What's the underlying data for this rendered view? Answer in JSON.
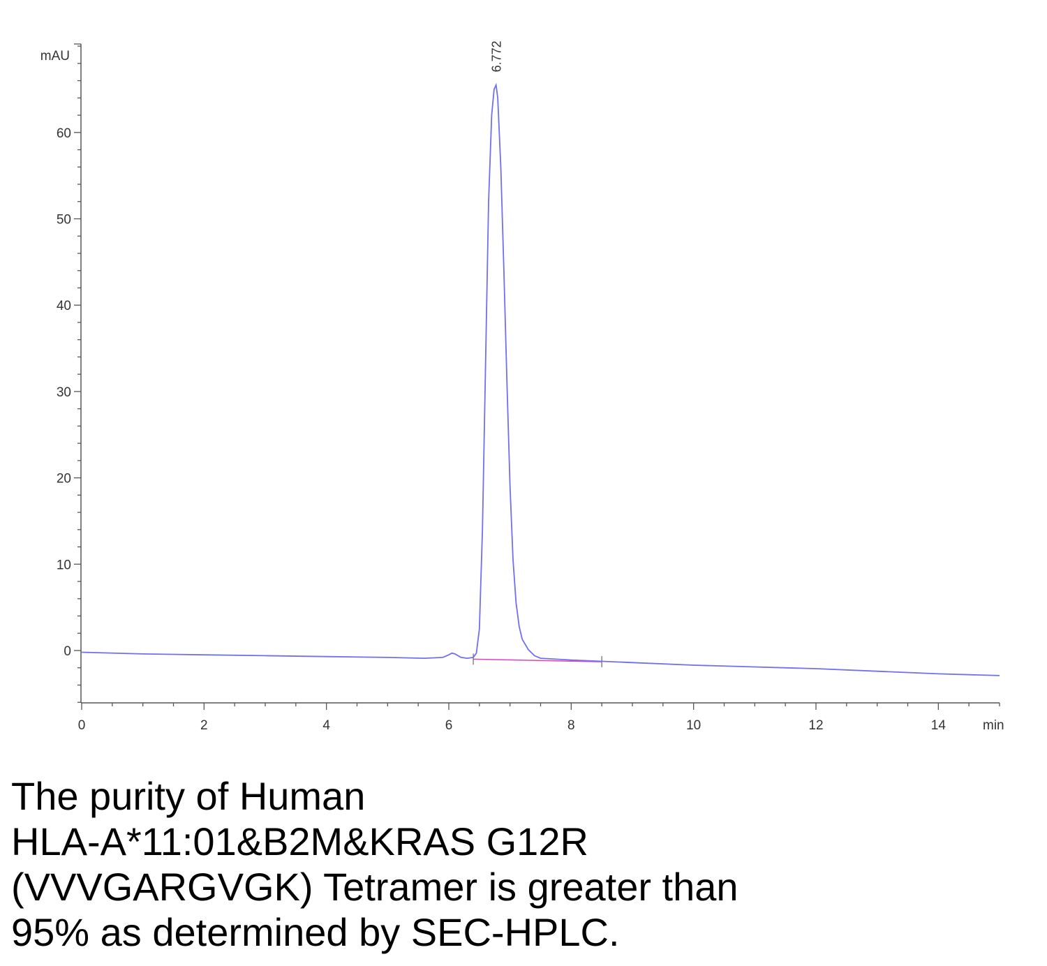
{
  "chart_data": {
    "type": "line",
    "title": "",
    "xlabel": "min",
    "ylabel": "mAU",
    "xlim": [
      0,
      15
    ],
    "ylim": [
      -6,
      70
    ],
    "x_major_ticks": [
      0,
      2,
      4,
      6,
      8,
      10,
      12,
      14
    ],
    "x_tick_labels": [
      "0",
      "2",
      "4",
      "6",
      "8",
      "10",
      "12",
      "14"
    ],
    "x_minor_step": 0.5,
    "y_major_ticks": [
      0,
      10,
      20,
      30,
      40,
      50,
      60
    ],
    "y_tick_labels": [
      "0",
      "10",
      "20",
      "30",
      "40",
      "50",
      "60"
    ],
    "y_minor_step": 2,
    "grid": false,
    "legend": "none",
    "peak_label": {
      "x": 6.772,
      "y": 66.5,
      "text": "6.772"
    },
    "series": [
      {
        "color": "#6f6ff0",
        "x": [
          0,
          1,
          2,
          3,
          4,
          5,
          5.6,
          5.9,
          6.0,
          6.05,
          6.1,
          6.2,
          6.3,
          6.4,
          6.45,
          6.5,
          6.55,
          6.6,
          6.65,
          6.7,
          6.74,
          6.772,
          6.8,
          6.85,
          6.9,
          6.95,
          7.0,
          7.05,
          7.1,
          7.15,
          7.2,
          7.3,
          7.4,
          7.5,
          8,
          9,
          10,
          11,
          12,
          13,
          14,
          15
        ],
        "y": [
          -0.2,
          -0.4,
          -0.5,
          -0.6,
          -0.7,
          -0.8,
          -0.9,
          -0.8,
          -0.5,
          -0.3,
          -0.4,
          -0.8,
          -0.9,
          -0.8,
          -0.3,
          2.5,
          14,
          33,
          52,
          62,
          65,
          65.5,
          64,
          56,
          44,
          31,
          19,
          10.5,
          5.5,
          2.8,
          1.3,
          0.1,
          -0.6,
          -0.9,
          -1.1,
          -1.4,
          -1.7,
          -1.9,
          -2.1,
          -2.4,
          -2.7,
          -2.9
        ]
      }
    ],
    "baseline": {
      "color": "#e040c0",
      "x": [
        6.4,
        8.5
      ],
      "y": [
        -1.0,
        -1.3
      ]
    },
    "integration_marks_x": [
      6.4,
      8.5
    ]
  },
  "caption": {
    "lines": [
      "The purity of Human",
      "HLA-A*11:01&B2M&KRAS G12R",
      "(VVVGARGVGK) Tetramer is greater than",
      "95% as determined by SEC-HPLC."
    ]
  }
}
